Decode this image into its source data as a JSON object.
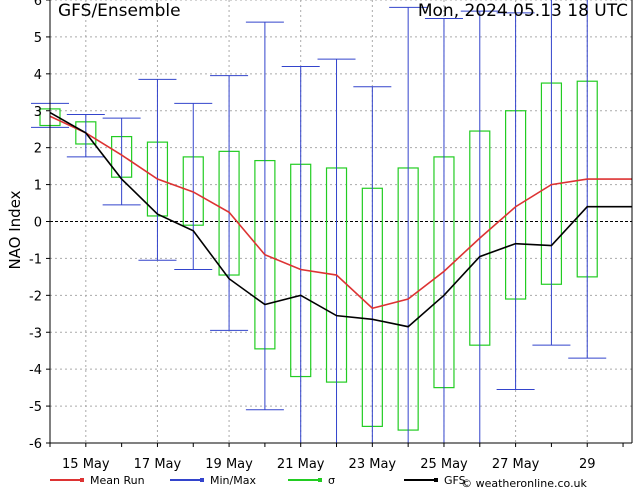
{
  "chart_data": {
    "type": "line",
    "title": "GFS/Ensemble",
    "subtitle": "Mon, 2024.05.13   18 UTC",
    "ylabel": "NAO Index",
    "ylim": [
      -6,
      6
    ],
    "xlim": [
      0,
      16.25
    ],
    "yticks": [
      -6,
      -5,
      -4,
      -3,
      -2,
      -1,
      0,
      1,
      2,
      3,
      4,
      5,
      6
    ],
    "xticks": [
      {
        "label": "15 May",
        "x": 1
      },
      {
        "label": "17 May",
        "x": 3
      },
      {
        "label": "19 May",
        "x": 5
      },
      {
        "label": "21 May",
        "x": 7
      },
      {
        "label": "23 May",
        "x": 9
      },
      {
        "label": "25 May",
        "x": 11
      },
      {
        "label": "27 May",
        "x": 13
      },
      {
        "label": "29",
        "x": 15
      }
    ],
    "grid": true,
    "series": [
      {
        "name": "Mean Run",
        "color": "#dd3333",
        "x": [
          0,
          1,
          2,
          3,
          4,
          5,
          6,
          7,
          8,
          9,
          10,
          11,
          12,
          13,
          14,
          15,
          16.25
        ],
        "values": [
          2.85,
          2.4,
          1.8,
          1.15,
          0.8,
          0.25,
          -0.9,
          -1.3,
          -1.45,
          -2.35,
          -2.1,
          -1.35,
          -0.45,
          0.4,
          1.0,
          1.15,
          1.15
        ]
      },
      {
        "name": "GFS",
        "color": "#000000",
        "x": [
          0,
          1,
          2,
          3,
          4,
          5,
          6,
          7,
          8,
          9,
          10,
          11,
          12,
          13,
          14,
          15,
          16.25
        ],
        "values": [
          2.95,
          2.4,
          1.15,
          0.2,
          -0.25,
          -1.55,
          -2.25,
          -2.0,
          -2.55,
          -2.65,
          -2.85,
          -2.0,
          -0.95,
          -0.6,
          -0.65,
          0.4,
          0.4
        ]
      }
    ],
    "minmax": {
      "name": "Min/Max",
      "color": "#3344cc",
      "x": [
        0,
        1,
        2,
        3,
        4,
        5,
        6,
        7,
        8,
        9,
        10,
        11,
        12,
        13,
        14,
        15
      ],
      "min": [
        2.55,
        1.75,
        0.45,
        -1.05,
        -1.3,
        -2.95,
        -5.1,
        -6,
        -6,
        -6,
        -6,
        -6,
        -6,
        -4.55,
        -3.35,
        -3.7
      ],
      "max": [
        3.2,
        2.9,
        2.8,
        3.85,
        3.2,
        3.95,
        5.4,
        4.2,
        4.4,
        3.65,
        5.8,
        5.5,
        5.7,
        5.65,
        6,
        6
      ]
    },
    "sigma": {
      "name": "σ",
      "color": "#22cc22",
      "x": [
        0,
        1,
        2,
        3,
        4,
        5,
        6,
        7,
        8,
        9,
        10,
        11,
        12,
        13,
        14,
        15
      ],
      "low": [
        2.6,
        2.1,
        1.2,
        0.15,
        -0.1,
        -1.45,
        -3.45,
        -4.2,
        -4.35,
        -5.55,
        -5.65,
        -4.5,
        -3.35,
        -2.1,
        -1.7,
        -1.5
      ],
      "high": [
        3.05,
        2.7,
        2.3,
        2.15,
        1.75,
        1.9,
        1.65,
        1.55,
        1.45,
        0.9,
        1.45,
        1.75,
        2.45,
        3.0,
        3.75,
        3.8
      ]
    }
  },
  "legend": [
    {
      "label": "Mean Run",
      "color": "#dd3333"
    },
    {
      "label": "Min/Max",
      "color": "#3344cc"
    },
    {
      "label": "σ",
      "color": "#22cc22"
    },
    {
      "label": "GFS",
      "color": "#000000"
    }
  ],
  "credit": "© weatheronline.co.uk"
}
